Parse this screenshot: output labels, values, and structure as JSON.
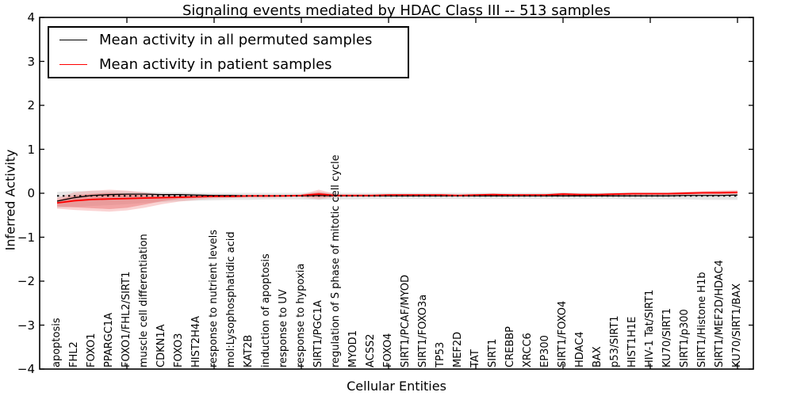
{
  "header": {
    "title": "Signaling events mediated by HDAC Class III -- 513 samples"
  },
  "chart_data": {
    "type": "line",
    "title": "Signaling events mediated by HDAC Class III -- 513 samples",
    "xlabel": "Cellular Entities",
    "ylabel": "Inferred Activity",
    "ylim": [
      -4,
      4
    ],
    "yticks": [
      -4,
      -3,
      -2,
      -1,
      0,
      1,
      2,
      3,
      4
    ],
    "xtick_indices": [
      4,
      9,
      14,
      19,
      24,
      29,
      34,
      39
    ],
    "grid": false,
    "legend_position": "upper left",
    "categories": [
      "apoptosis",
      "FHL2",
      "FOXO1",
      "PPARGC1A",
      "FOXO1/FHL2/SIRT1",
      "muscle cell differentiation",
      "CDKN1A",
      "FOXO3",
      "HIST2H4A",
      "response to nutrient levels",
      "mol:Lysophosphatidic acid",
      "KAT2B",
      "induction of apoptosis",
      "response to UV",
      "response to hypoxia",
      "SIRT1/PGC1A",
      "regulation of S phase of mitotic cell cycle",
      "MYOD1",
      "ACSS2",
      "FOXO4",
      "SIRT1/PCAF/MYOD",
      "SIRT1/FOXO3a",
      "TP53",
      "MEF2D",
      "TAT",
      "SIRT1",
      "CREBBP",
      "XRCC6",
      "EP300",
      "SIRT1/FOXO4",
      "HDAC4",
      "BAX",
      "p53/SIRT1",
      "HIST1H1E",
      "HIV-1 Tat/SIRT1",
      "KU70/SIRT1",
      "SIRT1/p300",
      "SIRT1/Histone H1b",
      "SIRT1/MEF2D/HDAC4",
      "KU70/SIRT1/BAX"
    ],
    "zero_line": {
      "style": "dotted",
      "color": "#000000",
      "value": -0.06
    },
    "series": [
      {
        "name": "Mean activity in all permuted samples",
        "color": "#000000",
        "width": 1.3,
        "values": [
          -0.18,
          -0.1,
          -0.05,
          -0.03,
          -0.02,
          -0.02,
          -0.03,
          -0.03,
          -0.04,
          -0.05,
          -0.05,
          -0.06,
          -0.06,
          -0.06,
          -0.06,
          -0.05,
          -0.06,
          -0.06,
          -0.06,
          -0.06,
          -0.06,
          -0.06,
          -0.06,
          -0.06,
          -0.06,
          -0.06,
          -0.06,
          -0.06,
          -0.06,
          -0.06,
          -0.06,
          -0.06,
          -0.06,
          -0.06,
          -0.06,
          -0.06,
          -0.05,
          -0.05,
          -0.05,
          -0.04
        ]
      },
      {
        "name": "Mean activity in patient samples",
        "color": "#ff0000",
        "width": 1.9,
        "values": [
          -0.22,
          -0.17,
          -0.14,
          -0.13,
          -0.12,
          -0.11,
          -0.1,
          -0.09,
          -0.08,
          -0.07,
          -0.07,
          -0.06,
          -0.06,
          -0.06,
          -0.05,
          -0.02,
          -0.05,
          -0.05,
          -0.05,
          -0.04,
          -0.04,
          -0.04,
          -0.04,
          -0.05,
          -0.04,
          -0.03,
          -0.04,
          -0.04,
          -0.04,
          -0.02,
          -0.03,
          -0.03,
          -0.02,
          -0.01,
          -0.01,
          -0.01,
          0.0,
          0.01,
          0.01,
          0.02
        ]
      }
    ],
    "bands": [
      {
        "name": "permuted-samples-range",
        "color": "#d8d8d8",
        "opacity": 0.65,
        "upper": [
          0.03,
          0.05,
          0.05,
          0.05,
          0.04,
          0.03,
          0.02,
          0.02,
          0.01,
          0.01,
          0.01,
          0.01,
          0.01,
          0.01,
          0.01,
          0.02,
          0.01,
          0.01,
          0.01,
          0.01,
          0.01,
          0.01,
          0.01,
          0.01,
          0.01,
          0.01,
          0.01,
          0.01,
          0.01,
          0.02,
          0.01,
          0.01,
          0.02,
          0.02,
          0.02,
          0.02,
          0.03,
          0.03,
          0.04,
          0.04
        ],
        "lower": [
          -0.33,
          -0.31,
          -0.29,
          -0.27,
          -0.25,
          -0.22,
          -0.2,
          -0.18,
          -0.17,
          -0.16,
          -0.15,
          -0.15,
          -0.14,
          -0.14,
          -0.14,
          -0.15,
          -0.14,
          -0.14,
          -0.13,
          -0.13,
          -0.13,
          -0.13,
          -0.13,
          -0.13,
          -0.13,
          -0.13,
          -0.13,
          -0.13,
          -0.13,
          -0.14,
          -0.13,
          -0.13,
          -0.13,
          -0.14,
          -0.14,
          -0.14,
          -0.14,
          -0.15,
          -0.15,
          -0.15
        ]
      },
      {
        "name": "patient-samples-outer-range",
        "color": "#f08080",
        "opacity": 0.35,
        "upper": [
          -0.1,
          0.02,
          0.06,
          0.08,
          0.06,
          0.02,
          -0.03,
          -0.05,
          -0.06,
          -0.05,
          -0.05,
          -0.04,
          -0.04,
          -0.04,
          -0.03,
          0.08,
          -0.02,
          -0.03,
          -0.03,
          -0.02,
          -0.02,
          -0.02,
          -0.02,
          -0.03,
          -0.02,
          -0.01,
          -0.02,
          -0.02,
          -0.02,
          0.01,
          -0.01,
          -0.01,
          0.0,
          0.01,
          0.01,
          0.01,
          0.03,
          0.05,
          0.06,
          0.07
        ],
        "lower": [
          -0.35,
          -0.38,
          -0.4,
          -0.42,
          -0.39,
          -0.33,
          -0.25,
          -0.19,
          -0.15,
          -0.12,
          -0.11,
          -0.1,
          -0.1,
          -0.09,
          -0.09,
          -0.14,
          -0.08,
          -0.08,
          -0.08,
          -0.07,
          -0.07,
          -0.07,
          -0.07,
          -0.07,
          -0.07,
          -0.06,
          -0.06,
          -0.06,
          -0.06,
          -0.06,
          -0.06,
          -0.06,
          -0.05,
          -0.05,
          -0.04,
          -0.04,
          -0.04,
          -0.03,
          -0.03,
          -0.03
        ]
      },
      {
        "name": "patient-samples-inner-range",
        "color": "#e86a6a",
        "opacity": 0.45,
        "upper": [
          -0.15,
          -0.05,
          -0.01,
          0.01,
          -0.01,
          -0.05,
          -0.07,
          -0.07,
          -0.07,
          -0.06,
          -0.06,
          -0.05,
          -0.05,
          -0.05,
          -0.04,
          0.03,
          -0.04,
          -0.04,
          -0.04,
          -0.03,
          -0.03,
          -0.03,
          -0.03,
          -0.04,
          -0.03,
          -0.02,
          -0.03,
          -0.03,
          -0.03,
          0.0,
          -0.02,
          -0.02,
          -0.01,
          0.0,
          0.0,
          0.0,
          0.01,
          0.03,
          0.04,
          0.05
        ],
        "lower": [
          -0.3,
          -0.32,
          -0.34,
          -0.36,
          -0.33,
          -0.26,
          -0.18,
          -0.13,
          -0.11,
          -0.09,
          -0.09,
          -0.08,
          -0.08,
          -0.07,
          -0.07,
          -0.09,
          -0.07,
          -0.06,
          -0.06,
          -0.06,
          -0.06,
          -0.06,
          -0.05,
          -0.06,
          -0.05,
          -0.05,
          -0.05,
          -0.05,
          -0.05,
          -0.04,
          -0.05,
          -0.04,
          -0.04,
          -0.03,
          -0.03,
          -0.03,
          -0.02,
          -0.01,
          -0.01,
          0.0
        ]
      }
    ]
  }
}
